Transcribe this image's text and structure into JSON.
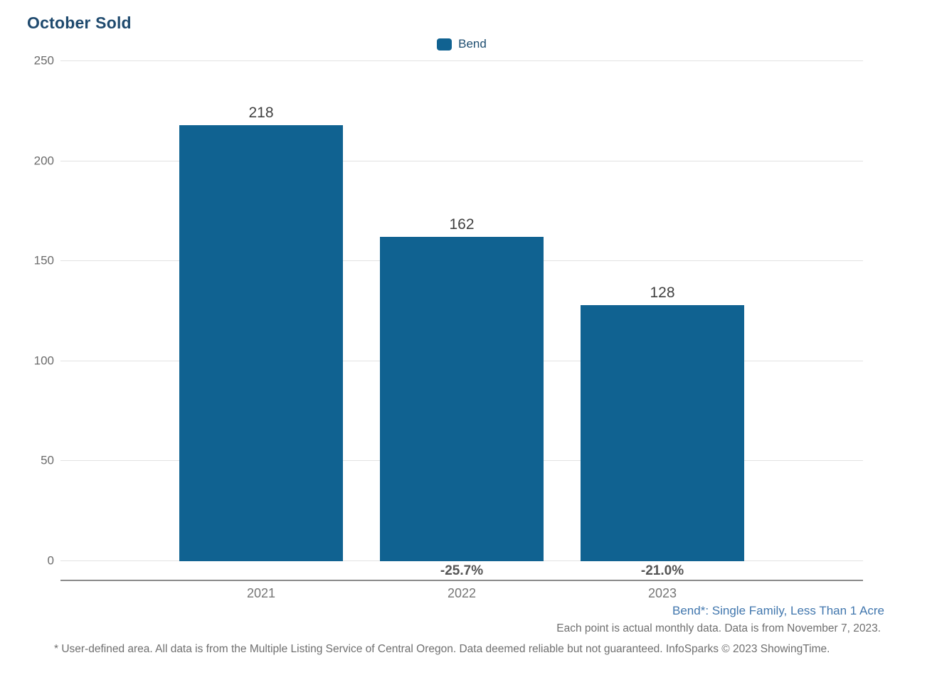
{
  "title": "October Sold",
  "legend": {
    "items": [
      {
        "label": "Bend",
        "color": "#106291"
      }
    ]
  },
  "chart_data": {
    "type": "bar",
    "title": "October Sold",
    "categories": [
      "2021",
      "2022",
      "2023"
    ],
    "series": [
      {
        "name": "Bend",
        "color": "#106291",
        "values": [
          218,
          162,
          128
        ]
      }
    ],
    "value_labels": [
      "218",
      "162",
      "128"
    ],
    "pct_change_labels": [
      "",
      "-25.7%",
      "-21.0%"
    ],
    "xlabel": "",
    "ylabel": "",
    "ylim": [
      0,
      250
    ],
    "yticks": [
      0,
      50,
      100,
      150,
      200,
      250
    ],
    "grid": true,
    "legend_position": "top-center"
  },
  "footnotes": {
    "series_definition": "Bend*: Single Family, Less Than 1 Acre",
    "data_note": "Each point is actual monthly data. Data is from November 7, 2023.",
    "disclaimer": "* User-defined area. All data is from the Multiple Listing Service of Central Oregon. Data deemed reliable but not guaranteed. InfoSparks © 2023 ShowingTime."
  },
  "colors": {
    "title": "#1f4a6e",
    "bar": "#106291",
    "legend_label": "#1d4d70",
    "value_label": "#404040",
    "pct_label": "#545454",
    "ytick_label": "#6b6b6b",
    "xtick_label": "#757575",
    "gridline": "#e2e2e2",
    "axis_line": "#8a8a8a",
    "note_definition": "#4076ad",
    "note_gray": "#6f6f6f"
  }
}
